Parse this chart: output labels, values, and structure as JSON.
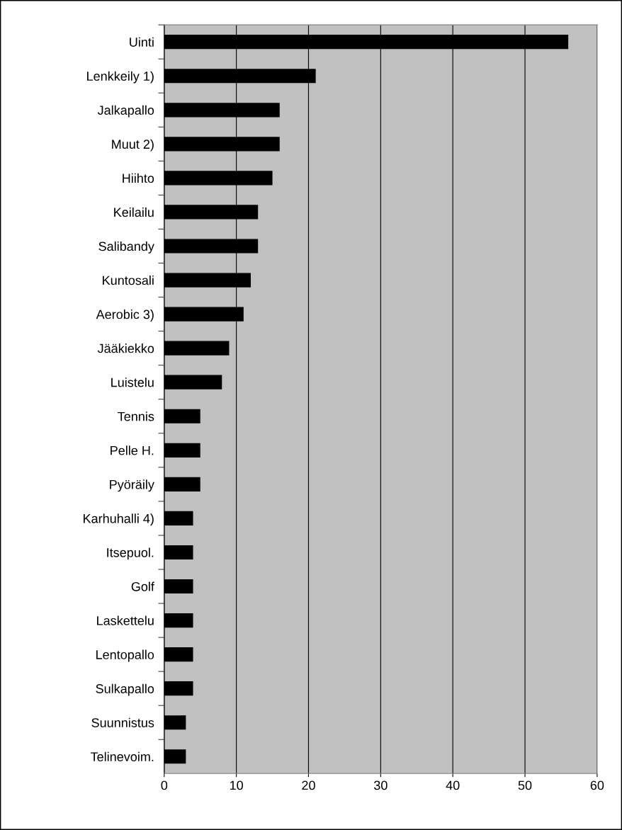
{
  "chart_data": {
    "type": "bar",
    "orientation": "horizontal",
    "categories": [
      "Uinti",
      "Lenkkeily 1)",
      "Jalkapallo",
      "Muut 2)",
      "Hiihto",
      "Keilailu",
      "Salibandy",
      "Kuntosali",
      "Aerobic 3)",
      "Jääkiekko",
      "Luistelu",
      "Tennis",
      "Pelle H.",
      "Pyöräily",
      "Karhuhalli 4)",
      "Itsepuol.",
      "Golf",
      "Laskettelu",
      "Lentopallo",
      "Sulkapallo",
      "Suunnistus",
      "Telinevoim."
    ],
    "values": [
      56,
      21,
      16,
      16,
      15,
      13,
      13,
      12,
      11,
      9,
      8,
      5,
      5,
      5,
      4,
      4,
      4,
      4,
      4,
      4,
      3,
      3
    ],
    "color": "#000000",
    "xlim": [
      0,
      60
    ],
    "xticks": [
      0,
      10,
      20,
      30,
      40,
      50,
      60
    ],
    "grid": "x"
  }
}
